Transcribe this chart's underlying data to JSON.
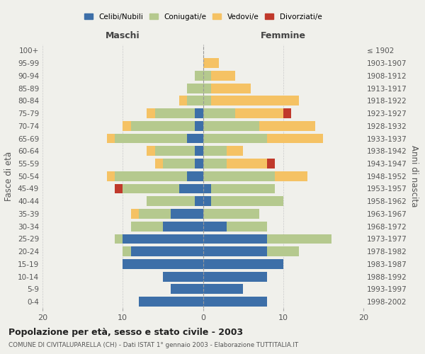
{
  "age_groups": [
    "0-4",
    "5-9",
    "10-14",
    "15-19",
    "20-24",
    "25-29",
    "30-34",
    "35-39",
    "40-44",
    "45-49",
    "50-54",
    "55-59",
    "60-64",
    "65-69",
    "70-74",
    "75-79",
    "80-84",
    "85-89",
    "90-94",
    "95-99",
    "100+"
  ],
  "birth_years": [
    "1998-2002",
    "1993-1997",
    "1988-1992",
    "1983-1987",
    "1978-1982",
    "1973-1977",
    "1968-1972",
    "1963-1967",
    "1958-1962",
    "1953-1957",
    "1948-1952",
    "1943-1947",
    "1938-1942",
    "1933-1937",
    "1928-1932",
    "1923-1927",
    "1918-1922",
    "1913-1917",
    "1908-1912",
    "1903-1907",
    "≤ 1902"
  ],
  "maschi": {
    "celibi": [
      8,
      4,
      5,
      10,
      9,
      10,
      5,
      4,
      1,
      3,
      2,
      1,
      1,
      2,
      1,
      1,
      0,
      0,
      0,
      0,
      0
    ],
    "coniugati": [
      0,
      0,
      0,
      0,
      1,
      1,
      4,
      4,
      6,
      7,
      9,
      4,
      5,
      9,
      8,
      5,
      2,
      2,
      1,
      0,
      0
    ],
    "vedovi": [
      0,
      0,
      0,
      0,
      0,
      0,
      0,
      1,
      0,
      0,
      1,
      1,
      1,
      1,
      1,
      1,
      1,
      0,
      0,
      0,
      0
    ],
    "divorziati": [
      0,
      0,
      0,
      0,
      0,
      0,
      0,
      0,
      0,
      1,
      0,
      0,
      0,
      0,
      0,
      0,
      0,
      0,
      0,
      0,
      0
    ]
  },
  "femmine": {
    "nubili": [
      8,
      5,
      8,
      10,
      8,
      8,
      3,
      0,
      1,
      1,
      0,
      0,
      0,
      0,
      0,
      0,
      0,
      0,
      0,
      0,
      0
    ],
    "coniugate": [
      0,
      0,
      0,
      0,
      4,
      8,
      5,
      7,
      9,
      8,
      9,
      3,
      3,
      8,
      7,
      4,
      1,
      1,
      1,
      0,
      0
    ],
    "vedove": [
      0,
      0,
      0,
      0,
      0,
      0,
      0,
      0,
      0,
      0,
      4,
      5,
      2,
      7,
      7,
      6,
      11,
      5,
      3,
      2,
      0
    ],
    "divorziate": [
      0,
      0,
      0,
      0,
      0,
      0,
      0,
      0,
      0,
      0,
      0,
      1,
      0,
      0,
      0,
      1,
      0,
      0,
      0,
      0,
      0
    ]
  },
  "colors": {
    "celibi_nubili": "#3d6fa8",
    "coniugati": "#b5c98e",
    "vedovi": "#f5c264",
    "divorziati": "#c0392b"
  },
  "title": "Popolazione per età, sesso e stato civile - 2003",
  "subtitle": "COMUNE DI CIVITALUPARELLA (CH) - Dati ISTAT 1° gennaio 2003 - Elaborazione TUTTITALIA.IT",
  "xlabel_left": "Maschi",
  "xlabel_right": "Femmine",
  "ylabel": "Fasce di età",
  "ylabel_right": "Anni di nascita",
  "xlim": 20,
  "background_color": "#f0f0eb",
  "grid_color": "#cccccc"
}
